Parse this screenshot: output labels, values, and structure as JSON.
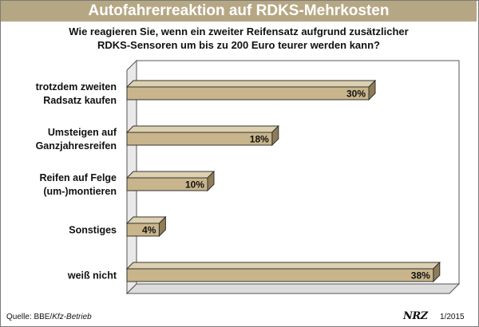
{
  "chart_data": {
    "type": "bar",
    "orientation": "horizontal",
    "title": "Autofahrerreaktion auf RDKS-Mehrkosten",
    "subtitle_lines": [
      "Wie reagieren Sie, wenn ein zweiter Reifensatz aufgrund zusätzlicher",
      "RDKS-Sensoren um bis zu 200 Euro teurer werden kann?"
    ],
    "categories": [
      [
        "trotzdem zweiten",
        "Radsatz kaufen"
      ],
      [
        "Umsteigen auf",
        "Ganzjahresreifen"
      ],
      [
        "Reifen auf Felge",
        "(um-)montieren"
      ],
      [
        "Sonstiges"
      ],
      [
        "weiß nicht"
      ]
    ],
    "values": [
      30,
      18,
      10,
      4,
      38
    ],
    "value_labels": [
      "30%",
      "18%",
      "10%",
      "4%",
      "38%"
    ],
    "unit": "%",
    "xlim": [
      0,
      40
    ],
    "grid": false,
    "legend": "none",
    "colors": {
      "bar_front": "#c9b58c",
      "bar_top": "#ddd0b0",
      "bar_side": "#8f7d58",
      "title_bg": "#b6a784"
    }
  },
  "footer": {
    "source_prefix": "Quelle: BBE/",
    "source_italic": "Kfz-Betrieb",
    "logo": "NRZ",
    "date": "1/2015"
  }
}
